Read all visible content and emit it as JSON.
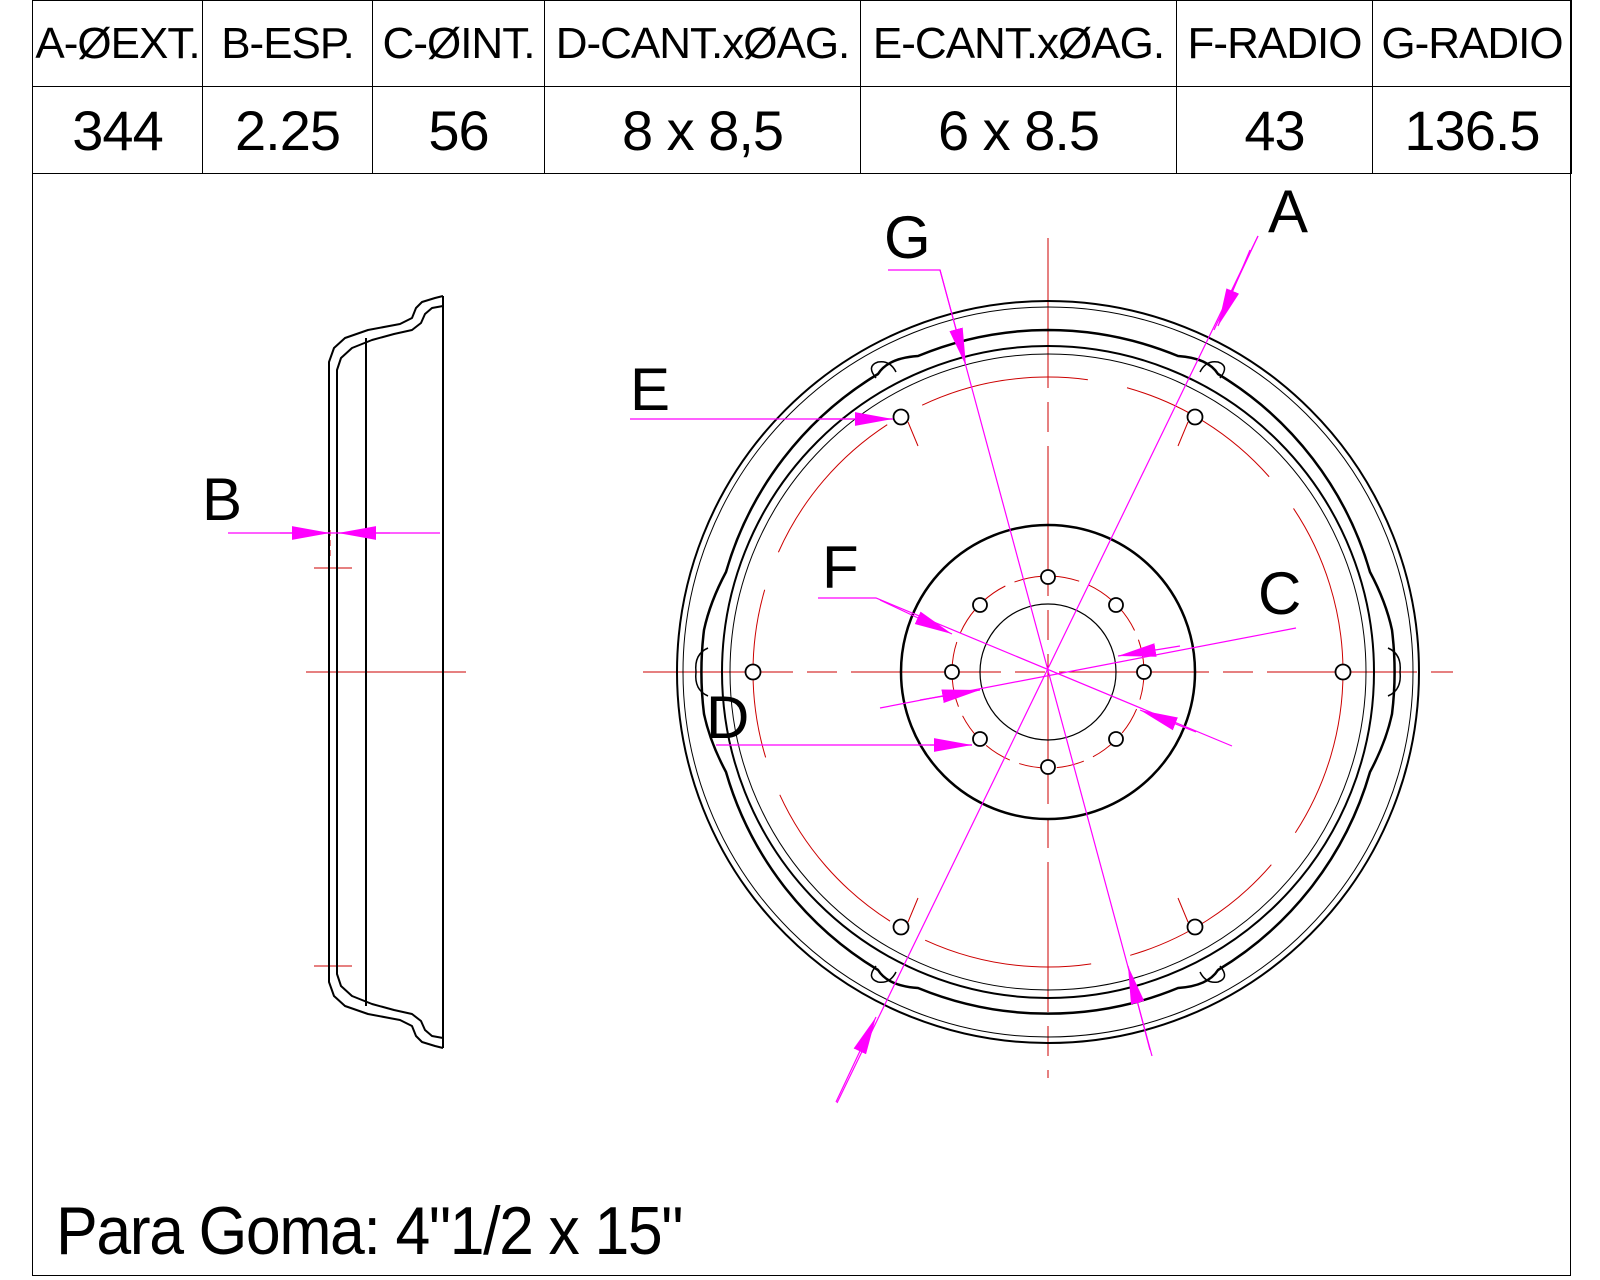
{
  "table": {
    "headers": [
      "A-ØEXT.",
      "B-ESP.",
      "C-ØINT.",
      "D-CANT.xØAG.",
      "E-CANT.xØAG.",
      "F-RADIO",
      "G-RADIO"
    ],
    "values": [
      "344",
      "2.25",
      "56",
      "8 x 8,5",
      "6 x 8.5",
      "43",
      "136.5"
    ]
  },
  "labels": {
    "A": "A",
    "B": "B",
    "C": "C",
    "D": "D",
    "E": "E",
    "F": "F",
    "G": "G"
  },
  "footer": {
    "note": "Para Goma: 4\"1/2 x 15\""
  },
  "colors": {
    "outline": "#000000",
    "dimension": "#ff00ff",
    "centerline": "#cc0000"
  }
}
